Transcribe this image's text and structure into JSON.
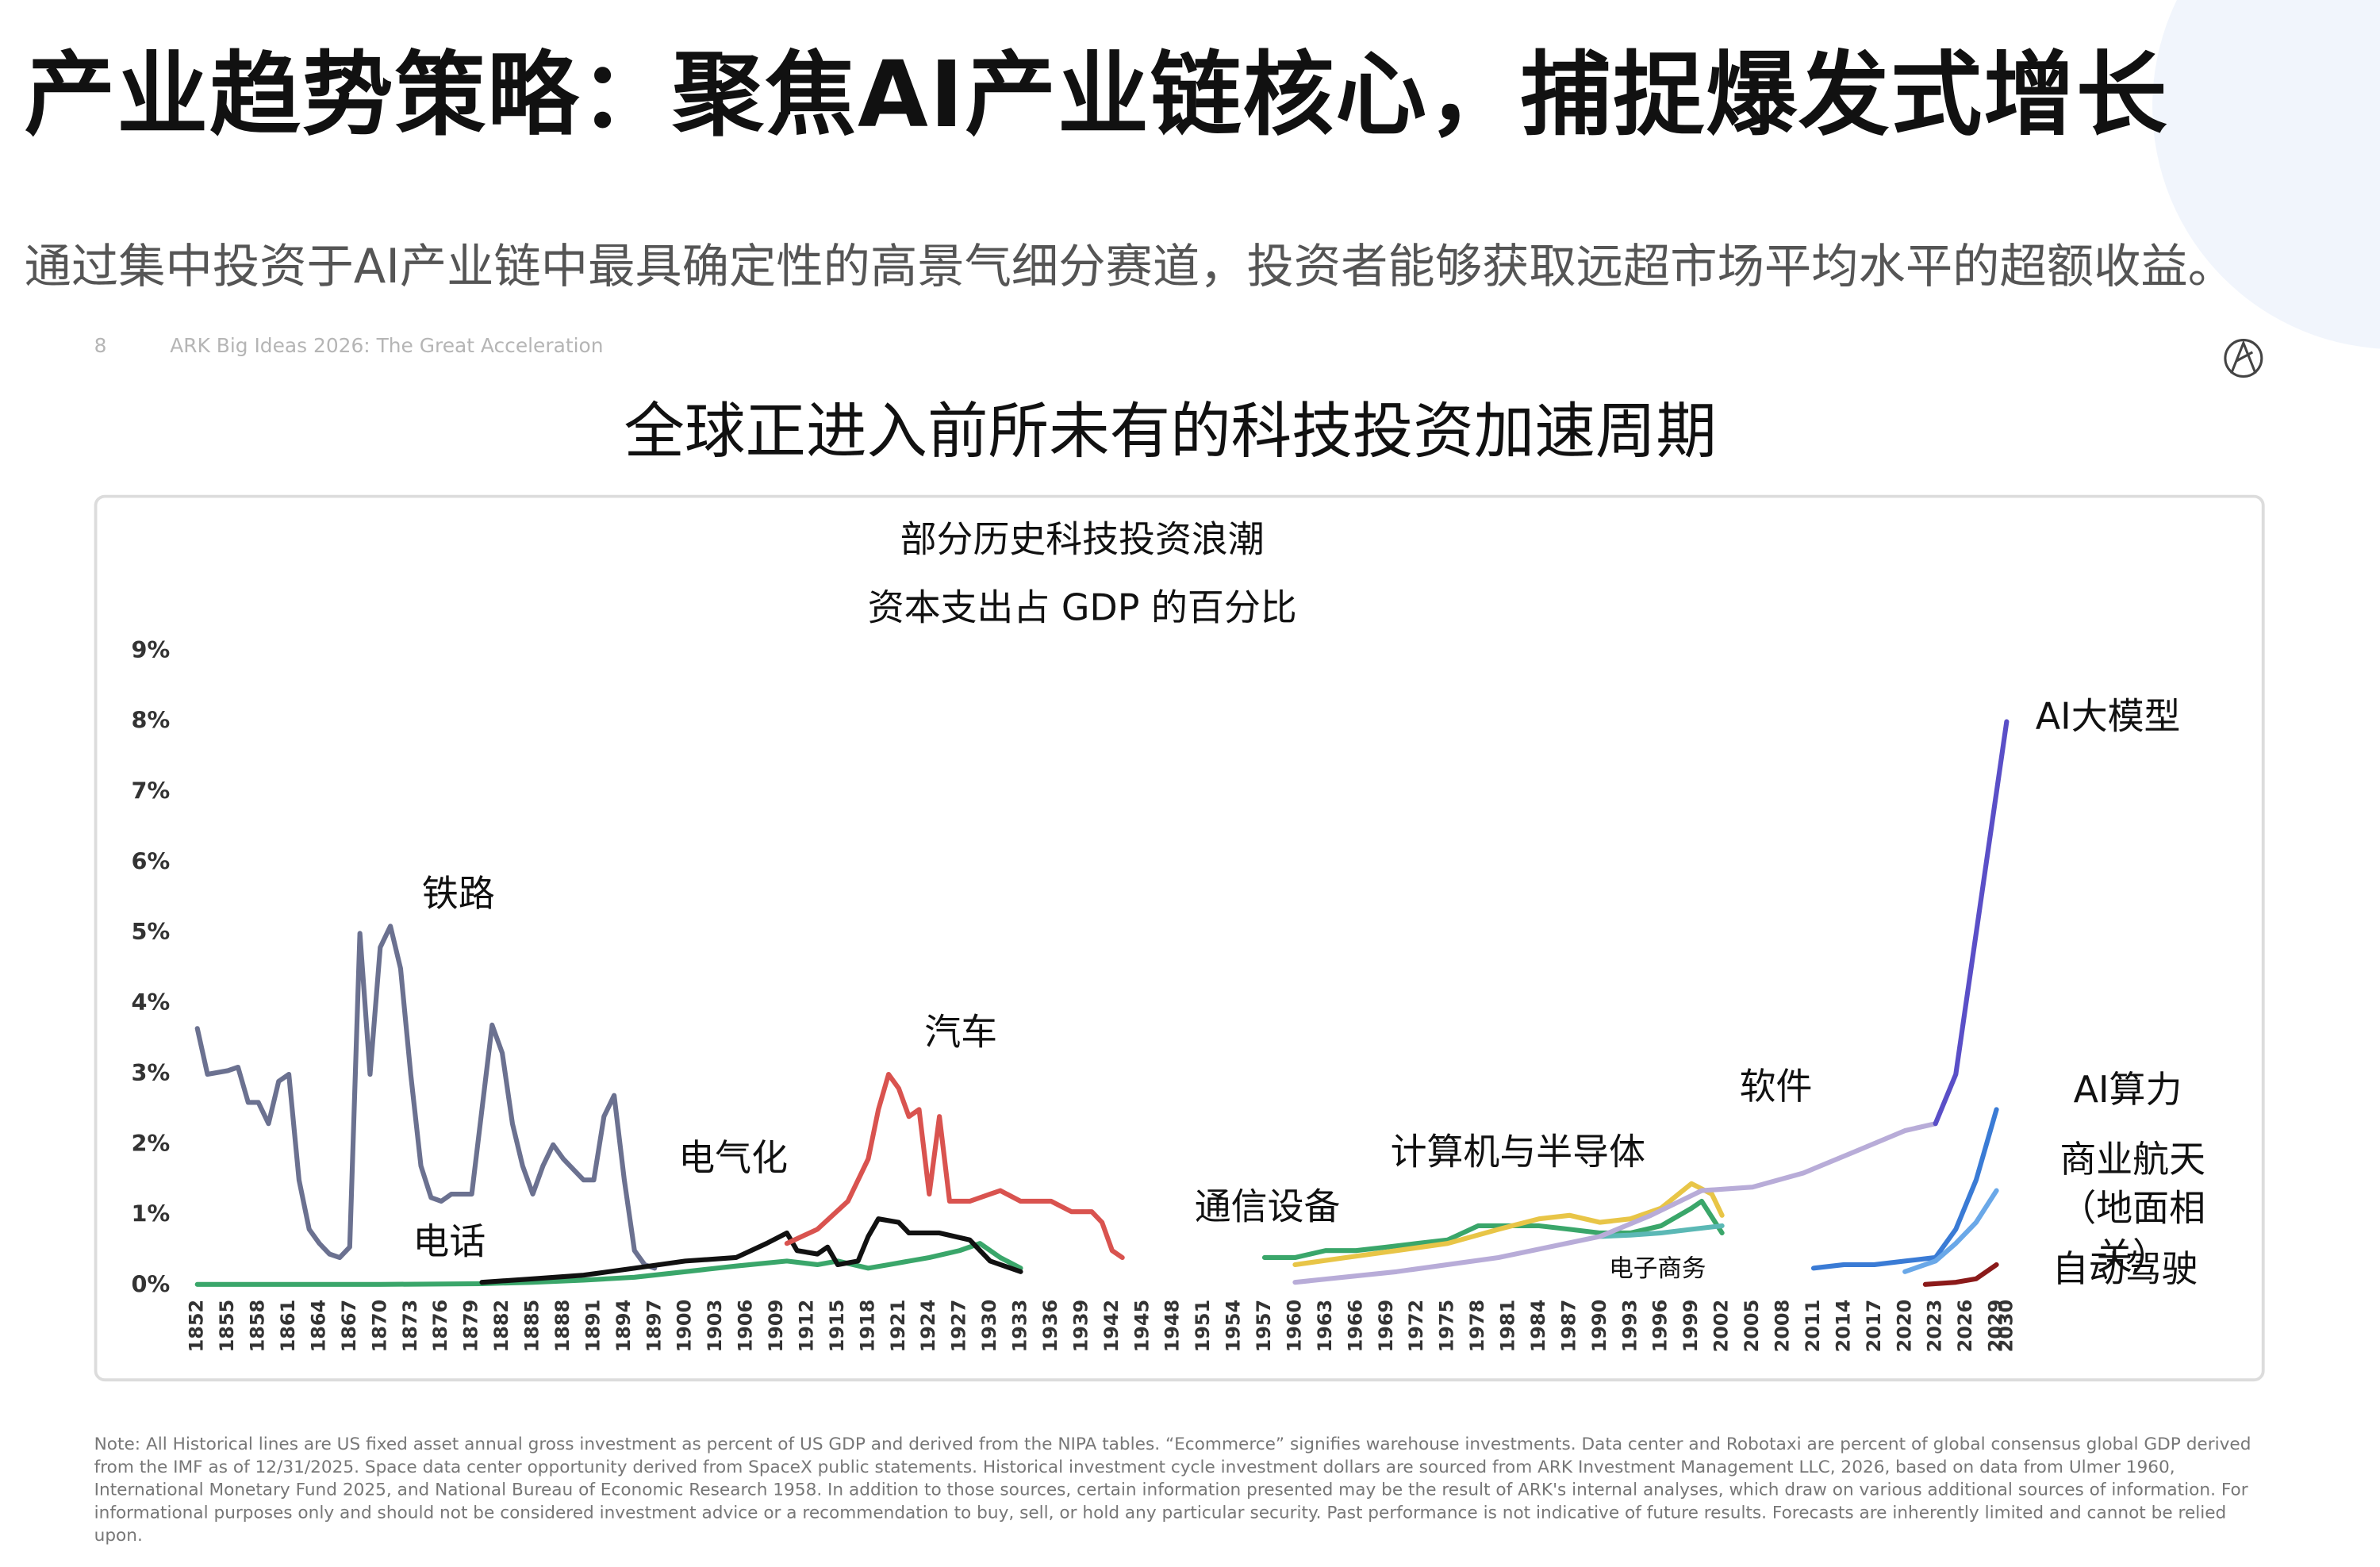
{
  "header": {
    "title": "产业趋势策略：聚焦AI产业链核心，捕捉爆发式增长",
    "subtitle": "通过集中投资于AI产业链中最具确定性的高景气细分赛道，投资者能够获取远超市场平均水平的超额收益。"
  },
  "slide": {
    "page": "8",
    "source": "ARK Big Ideas 2026: The Great Acceleration",
    "heading": "全球正进入前所未有的科技投资加速周期",
    "note": "Note: All Historical lines are US fixed asset annual gross investment as percent of US GDP and derived from the NIPA tables. “Ecommerce” signifies warehouse investments. Data center and Robotaxi are percent of global consensus global GDP derived from the IMF as of 12/31/2025. Space data center opportunity derived from SpaceX public statements. Historical investment cycle investment dollars are sourced from ARK Investment Management LLC, 2026, based on data from Ulmer 1960, International Monetary Fund 2025, and National Bureau of Economic Research 1958. In addition to those sources, certain information presented may be the result of ARK's internal analyses, which draw on various additional sources of information. For informational purposes only and should not be considered investment advice or a recommendation to buy, sell, or hold any particular security. Past performance is not indicative of future results. Forecasts are inherently limited and cannot be relied upon."
  },
  "chart_data": {
    "type": "line",
    "title": "部分历史科技投资浪潮",
    "subtitle": "资本支出占 GDP 的百分比",
    "xlim": [
      1852,
      2030
    ],
    "xticks": [
      1852,
      1855,
      1858,
      1861,
      1864,
      1867,
      1870,
      1873,
      1876,
      1879,
      1882,
      1885,
      1888,
      1891,
      1894,
      1897,
      1900,
      1903,
      1906,
      1909,
      1912,
      1915,
      1918,
      1921,
      1924,
      1927,
      1930,
      1933,
      1936,
      1939,
      1942,
      1945,
      1948,
      1951,
      1954,
      1957,
      1960,
      1963,
      1966,
      1969,
      1972,
      1975,
      1978,
      1981,
      1984,
      1987,
      1990,
      1993,
      1996,
      1999,
      2002,
      2005,
      2008,
      2011,
      2014,
      2017,
      2020,
      2023,
      2026,
      2029,
      2030
    ],
    "ylim": [
      0,
      9
    ],
    "yticks": [
      {
        "value": 0,
        "label": "0%"
      },
      {
        "value": 1,
        "label": "1%"
      },
      {
        "value": 2,
        "label": "2%"
      },
      {
        "value": 3,
        "label": "3%"
      },
      {
        "value": 4,
        "label": "4%"
      },
      {
        "value": 5,
        "label": "5%"
      },
      {
        "value": 6,
        "label": "6%"
      },
      {
        "value": 7,
        "label": "7%"
      },
      {
        "value": 8,
        "label": "8%"
      },
      {
        "value": 9,
        "label": "9%"
      }
    ],
    "grid": false,
    "series": [
      {
        "name": "铁路",
        "color": "#6b7190",
        "x": [
          1852,
          1853,
          1855,
          1856,
          1857,
          1858,
          1859,
          1860,
          1861,
          1862,
          1863,
          1864,
          1865,
          1866,
          1867,
          1868,
          1869,
          1870,
          1871,
          1872,
          1873,
          1874,
          1875,
          1876,
          1877,
          1878,
          1879,
          1880,
          1881,
          1882,
          1883,
          1884,
          1885,
          1886,
          1887,
          1888,
          1889,
          1890,
          1891,
          1892,
          1893,
          1894,
          1895,
          1896,
          1897
        ],
        "values": [
          3.65,
          3.0,
          3.05,
          3.1,
          2.6,
          2.6,
          2.3,
          2.9,
          3.0,
          1.5,
          0.8,
          0.6,
          0.45,
          0.4,
          0.55,
          5.0,
          3.0,
          4.8,
          5.1,
          4.5,
          3.0,
          1.7,
          1.25,
          1.2,
          1.3,
          1.3,
          1.3,
          2.5,
          3.7,
          3.3,
          2.3,
          1.7,
          1.3,
          1.7,
          2.0,
          1.8,
          1.65,
          1.5,
          1.5,
          2.4,
          2.7,
          1.5,
          0.5,
          0.3,
          0.25
        ]
      },
      {
        "name": "电话",
        "color": "#3aa66a",
        "x": [
          1852,
          1860,
          1870,
          1880,
          1885,
          1890,
          1895,
          1900,
          1905,
          1910,
          1913,
          1915,
          1918,
          1920,
          1924,
          1927,
          1929,
          1931,
          1933
        ],
        "values": [
          0.02,
          0.02,
          0.02,
          0.03,
          0.05,
          0.08,
          0.12,
          0.2,
          0.28,
          0.35,
          0.3,
          0.35,
          0.25,
          0.3,
          0.4,
          0.5,
          0.6,
          0.4,
          0.25
        ]
      },
      {
        "name": "电气化",
        "color": "#111111",
        "x": [
          1880,
          1885,
          1890,
          1895,
          1900,
          1905,
          1908,
          1910,
          1911,
          1913,
          1914,
          1915,
          1917,
          1918,
          1919,
          1921,
          1922,
          1925,
          1928,
          1930,
          1933
        ],
        "values": [
          0.05,
          0.1,
          0.15,
          0.25,
          0.35,
          0.4,
          0.6,
          0.75,
          0.5,
          0.45,
          0.55,
          0.3,
          0.35,
          0.7,
          0.95,
          0.9,
          0.75,
          0.75,
          0.65,
          0.35,
          0.2
        ]
      },
      {
        "name": "汽车",
        "color": "#d9534f",
        "x": [
          1910,
          1913,
          1916,
          1918,
          1919,
          1920,
          1921,
          1922,
          1923,
          1924,
          1925,
          1926,
          1928,
          1930,
          1931,
          1933,
          1936,
          1938,
          1940,
          1941,
          1942,
          1943
        ],
        "values": [
          0.6,
          0.8,
          1.2,
          1.8,
          2.5,
          3.0,
          2.8,
          2.4,
          2.5,
          1.3,
          2.4,
          1.2,
          1.2,
          1.3,
          1.35,
          1.2,
          1.2,
          1.05,
          1.05,
          0.9,
          0.5,
          0.4
        ]
      },
      {
        "name": "通信设备",
        "color": "#3aa66a",
        "x": [
          1957,
          1960,
          1963,
          1966,
          1969,
          1972,
          1975,
          1978,
          1981,
          1984,
          1987,
          1990,
          1993,
          1996,
          1999,
          2000,
          2002
        ],
        "values": [
          0.4,
          0.4,
          0.5,
          0.5,
          0.55,
          0.6,
          0.65,
          0.85,
          0.85,
          0.85,
          0.8,
          0.75,
          0.75,
          0.85,
          1.1,
          1.2,
          0.75
        ]
      },
      {
        "name": "计算机与半导体",
        "color": "#e8c547",
        "x": [
          1960,
          1965,
          1970,
          1975,
          1980,
          1984,
          1987,
          1990,
          1993,
          1996,
          1999,
          2001,
          2002
        ],
        "values": [
          0.3,
          0.4,
          0.5,
          0.6,
          0.8,
          0.95,
          1.0,
          0.9,
          0.95,
          1.1,
          1.45,
          1.3,
          1.0
        ]
      },
      {
        "name": "电子商务",
        "color": "#5bb8b5",
        "x": [
          1990,
          1993,
          1996,
          1999,
          2002
        ],
        "values": [
          0.7,
          0.72,
          0.75,
          0.8,
          0.85
        ]
      },
      {
        "name": "软件",
        "color": "#b8acd8",
        "x": [
          1960,
          1970,
          1980,
          1990,
          1995,
          2000,
          2005,
          2010,
          2015,
          2020,
          2023
        ],
        "values": [
          0.05,
          0.2,
          0.4,
          0.7,
          1.0,
          1.35,
          1.4,
          1.6,
          1.9,
          2.2,
          2.3
        ]
      },
      {
        "name": "AI大模型",
        "color": "#5a4fc7",
        "x": [
          2023,
          2025,
          2026,
          2027,
          2028,
          2029,
          2030
        ],
        "values": [
          2.3,
          3.0,
          4.0,
          5.0,
          6.0,
          7.0,
          8.0
        ]
      },
      {
        "name": "AI算力",
        "color": "#3a7bd5",
        "x": [
          2011,
          2014,
          2017,
          2020,
          2023,
          2025,
          2027,
          2029
        ],
        "values": [
          0.25,
          0.3,
          0.3,
          0.35,
          0.4,
          0.8,
          1.5,
          2.5
        ]
      },
      {
        "name": "商业航天（地面相关）",
        "color": "#6aa8e8",
        "x": [
          2020,
          2023,
          2025,
          2027,
          2029
        ],
        "values": [
          0.2,
          0.35,
          0.6,
          0.9,
          1.35
        ]
      },
      {
        "name": "自动驾驶",
        "color": "#8b1a1a",
        "x": [
          2022,
          2025,
          2027,
          2029
        ],
        "values": [
          0.02,
          0.05,
          0.1,
          0.3
        ]
      }
    ]
  }
}
